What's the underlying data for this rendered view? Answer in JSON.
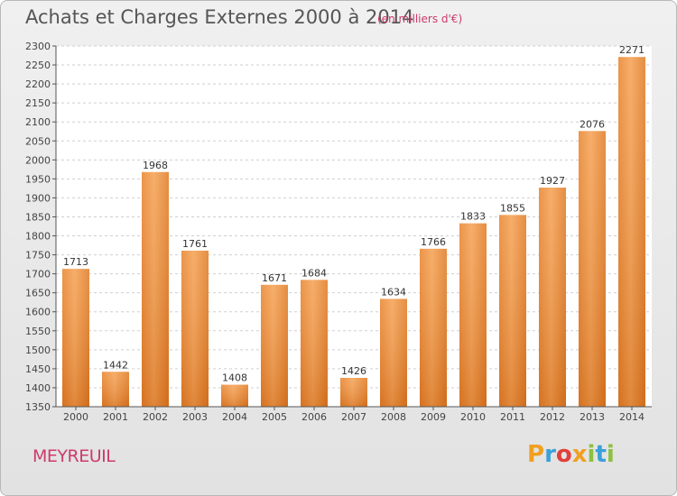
{
  "title": "Achats et Charges Externes 2000 à 2014",
  "subtitle": "(en milliers d'€)",
  "commune": "MEYREUIL",
  "logo": {
    "letters": [
      "P",
      "r",
      "o",
      "x",
      "i",
      "t",
      "i"
    ],
    "colors": [
      "#f0a020",
      "#3aa0d8",
      "#e0403a",
      "#f0a020",
      "#8cc040",
      "#3aa0d8",
      "#8cc040"
    ]
  },
  "chart_data": {
    "type": "bar",
    "categories": [
      "2000",
      "2001",
      "2002",
      "2003",
      "2004",
      "2005",
      "2006",
      "2007",
      "2008",
      "2009",
      "2010",
      "2011",
      "2012",
      "2013",
      "2014"
    ],
    "values": [
      1713,
      1442,
      1968,
      1761,
      1408,
      1671,
      1684,
      1426,
      1634,
      1766,
      1833,
      1855,
      1927,
      2076,
      2271
    ],
    "title": "Achats et Charges Externes 2000 à 2014",
    "ylim": [
      1350,
      2300
    ],
    "yticks": [
      1350,
      1400,
      1450,
      1500,
      1550,
      1600,
      1650,
      1700,
      1750,
      1800,
      1850,
      1900,
      1950,
      2000,
      2050,
      2100,
      2150,
      2200,
      2250,
      2300
    ],
    "grid": true,
    "bar_color": "#f0913a"
  }
}
